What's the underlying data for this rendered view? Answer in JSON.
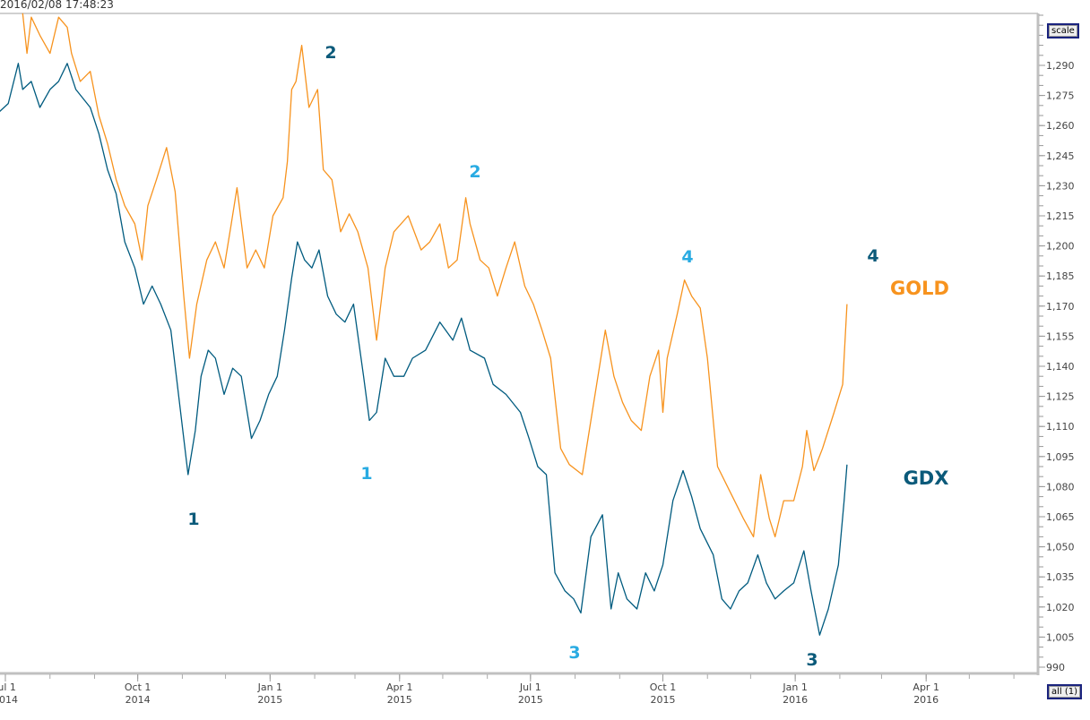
{
  "header": {
    "timestamp": "2016/02/08 17:48:23"
  },
  "buttons": {
    "scale": "scale",
    "all": "all (1)"
  },
  "annotations": {
    "gdx_wave_1": "1",
    "gdx_wave_2": "2",
    "gdx_wave_3": "3",
    "gdx_wave_4": "4",
    "gold_wave_1": "1",
    "gold_wave_2": "2",
    "gold_wave_3": "3",
    "gold_wave_4": "4",
    "gold_label": "GOLD",
    "gdx_label": "GDX"
  },
  "colors": {
    "gold": "#f7931e",
    "gdx": "#005b7f",
    "light_label": "#29abe2",
    "dark_label": "#0b5a7a",
    "axis": "#c0c0c0"
  },
  "chart_data": {
    "type": "line",
    "title": "",
    "x_unit": "days since 2014-07-01",
    "xlim": [
      -4,
      716
    ],
    "ylim": [
      987,
      1316
    ],
    "y_ticks": [
      "990",
      "1,005",
      "1,020",
      "1,035",
      "1,050",
      "1,065",
      "1,080",
      "1,095",
      "1,110",
      "1,125",
      "1,140",
      "1,155",
      "1,170",
      "1,185",
      "1,200",
      "1,215",
      "1,230",
      "1,245",
      "1,260",
      "1,275",
      "1,290"
    ],
    "x_ticks": [
      {
        "day": 0,
        "l1": "Jul 1",
        "l2": "2014"
      },
      {
        "day": 92,
        "l1": "Oct 1",
        "l2": "2014"
      },
      {
        "day": 184,
        "l1": "Jan 1",
        "l2": "2015"
      },
      {
        "day": 274,
        "l1": "Apr 1",
        "l2": "2015"
      },
      {
        "day": 365,
        "l1": "Jul 1",
        "l2": "2015"
      },
      {
        "day": 457,
        "l1": "Oct 1",
        "l2": "2015"
      },
      {
        "day": 549,
        "l1": "Jan 1",
        "l2": "2016"
      },
      {
        "day": 640,
        "l1": "Apr 1",
        "l2": "2016"
      }
    ],
    "series": [
      {
        "name": "GOLD",
        "color": "#f7931e",
        "points": [
          [
            12,
            1316
          ],
          [
            15,
            1296
          ],
          [
            18,
            1314
          ],
          [
            24,
            1305
          ],
          [
            31,
            1296
          ],
          [
            37,
            1314
          ],
          [
            43,
            1309
          ],
          [
            46,
            1296
          ],
          [
            52,
            1282
          ],
          [
            59,
            1287
          ],
          [
            65,
            1265
          ],
          [
            71,
            1251
          ],
          [
            77,
            1233
          ],
          [
            83,
            1220
          ],
          [
            90,
            1211
          ],
          [
            95,
            1193
          ],
          [
            99,
            1220
          ],
          [
            105,
            1233
          ],
          [
            112,
            1249
          ],
          [
            118,
            1227
          ],
          [
            124,
            1175
          ],
          [
            128,
            1144
          ],
          [
            133,
            1171
          ],
          [
            140,
            1193
          ],
          [
            146,
            1202
          ],
          [
            152,
            1189
          ],
          [
            157,
            1211
          ],
          [
            161,
            1229
          ],
          [
            168,
            1189
          ],
          [
            174,
            1198
          ],
          [
            180,
            1189
          ],
          [
            186,
            1215
          ],
          [
            193,
            1224
          ],
          [
            196,
            1242
          ],
          [
            199,
            1278
          ],
          [
            202,
            1282
          ],
          [
            206,
            1300
          ],
          [
            211,
            1269
          ],
          [
            217,
            1278
          ],
          [
            221,
            1238
          ],
          [
            227,
            1233
          ],
          [
            233,
            1207
          ],
          [
            239,
            1216
          ],
          [
            245,
            1207
          ],
          [
            252,
            1189
          ],
          [
            258,
            1153
          ],
          [
            264,
            1189
          ],
          [
            270,
            1207
          ],
          [
            280,
            1215
          ],
          [
            289,
            1198
          ],
          [
            295,
            1202
          ],
          [
            302,
            1211
          ],
          [
            308,
            1189
          ],
          [
            314,
            1193
          ],
          [
            320,
            1224
          ],
          [
            323,
            1211
          ],
          [
            330,
            1193
          ],
          [
            336,
            1189
          ],
          [
            342,
            1175
          ],
          [
            348,
            1189
          ],
          [
            354,
            1202
          ],
          [
            361,
            1180
          ],
          [
            367,
            1171
          ],
          [
            373,
            1158
          ],
          [
            379,
            1144
          ],
          [
            386,
            1099
          ],
          [
            392,
            1091
          ],
          [
            401,
            1086
          ],
          [
            407,
            1113
          ],
          [
            417,
            1158
          ],
          [
            423,
            1135
          ],
          [
            429,
            1122
          ],
          [
            435,
            1113
          ],
          [
            442,
            1108
          ],
          [
            448,
            1135
          ],
          [
            454,
            1148
          ],
          [
            457,
            1117
          ],
          [
            460,
            1144
          ],
          [
            467,
            1166
          ],
          [
            472,
            1183
          ],
          [
            477,
            1175
          ],
          [
            483,
            1169
          ],
          [
            488,
            1144
          ],
          [
            495,
            1090
          ],
          [
            504,
            1077
          ],
          [
            513,
            1064
          ],
          [
            520,
            1055
          ],
          [
            525,
            1086
          ],
          [
            531,
            1064
          ],
          [
            535,
            1055
          ],
          [
            541,
            1073
          ],
          [
            548,
            1073
          ],
          [
            554,
            1090
          ],
          [
            557,
            1108
          ],
          [
            562,
            1088
          ],
          [
            568,
            1099
          ],
          [
            576,
            1117
          ],
          [
            582,
            1131
          ],
          [
            585,
            1171
          ]
        ]
      },
      {
        "name": "GDX",
        "color": "#005b7f",
        "points": [
          [
            -4,
            1267
          ],
          [
            2,
            1271
          ],
          [
            9,
            1291
          ],
          [
            12,
            1278
          ],
          [
            18,
            1282
          ],
          [
            24,
            1269
          ],
          [
            31,
            1278
          ],
          [
            37,
            1282
          ],
          [
            43,
            1291
          ],
          [
            49,
            1278
          ],
          [
            59,
            1269
          ],
          [
            65,
            1256
          ],
          [
            71,
            1238
          ],
          [
            77,
            1226
          ],
          [
            83,
            1202
          ],
          [
            90,
            1189
          ],
          [
            96,
            1171
          ],
          [
            102,
            1180
          ],
          [
            108,
            1171
          ],
          [
            115,
            1158
          ],
          [
            121,
            1122
          ],
          [
            127,
            1086
          ],
          [
            132,
            1108
          ],
          [
            136,
            1135
          ],
          [
            141,
            1148
          ],
          [
            146,
            1144
          ],
          [
            152,
            1126
          ],
          [
            158,
            1139
          ],
          [
            164,
            1135
          ],
          [
            171,
            1104
          ],
          [
            177,
            1113
          ],
          [
            183,
            1126
          ],
          [
            189,
            1135
          ],
          [
            194,
            1158
          ],
          [
            199,
            1184
          ],
          [
            203,
            1202
          ],
          [
            208,
            1193
          ],
          [
            213,
            1189
          ],
          [
            218,
            1198
          ],
          [
            224,
            1175
          ],
          [
            230,
            1166
          ],
          [
            236,
            1162
          ],
          [
            242,
            1171
          ],
          [
            249,
            1135
          ],
          [
            253,
            1113
          ],
          [
            258,
            1117
          ],
          [
            264,
            1144
          ],
          [
            270,
            1135
          ],
          [
            277,
            1135
          ],
          [
            283,
            1144
          ],
          [
            292,
            1148
          ],
          [
            302,
            1162
          ],
          [
            311,
            1153
          ],
          [
            317,
            1164
          ],
          [
            323,
            1148
          ],
          [
            333,
            1144
          ],
          [
            339,
            1131
          ],
          [
            348,
            1126
          ],
          [
            358,
            1117
          ],
          [
            364,
            1104
          ],
          [
            370,
            1090
          ],
          [
            376,
            1086
          ],
          [
            382,
            1037
          ],
          [
            389,
            1028
          ],
          [
            395,
            1024
          ],
          [
            400,
            1017
          ],
          [
            407,
            1055
          ],
          [
            415,
            1066
          ],
          [
            421,
            1019
          ],
          [
            426,
            1037
          ],
          [
            432,
            1024
          ],
          [
            439,
            1019
          ],
          [
            445,
            1037
          ],
          [
            451,
            1028
          ],
          [
            457,
            1041
          ],
          [
            464,
            1073
          ],
          [
            471,
            1088
          ],
          [
            477,
            1075
          ],
          [
            483,
            1059
          ],
          [
            492,
            1046
          ],
          [
            498,
            1024
          ],
          [
            504,
            1019
          ],
          [
            510,
            1028
          ],
          [
            516,
            1032
          ],
          [
            523,
            1046
          ],
          [
            529,
            1032
          ],
          [
            535,
            1024
          ],
          [
            541,
            1028
          ],
          [
            548,
            1032
          ],
          [
            555,
            1048
          ],
          [
            560,
            1028
          ],
          [
            566,
            1006
          ],
          [
            572,
            1019
          ],
          [
            579,
            1041
          ],
          [
            583,
            1073
          ],
          [
            585,
            1091
          ]
        ]
      }
    ]
  }
}
